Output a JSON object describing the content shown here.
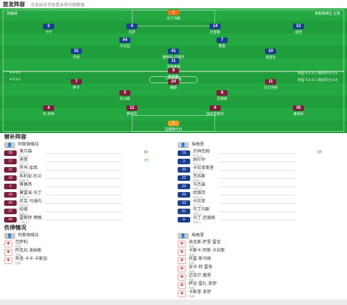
{
  "header": {
    "title": "首发阵容",
    "subtitle": "点击球员可查看本场详细数据",
    "left_team": "阿森纳",
    "right_team": "阿斯顿维拉 主场"
  },
  "pitch": {
    "home_formation": "4-2-3-1",
    "away_formation": "4-2-3-1",
    "center_text": "7球员赛场",
    "home_stats": "阵型 4-2-3-1 场均评分 6.9",
    "away_stats": "阵型 4-2-3-1 场均评分 6.8",
    "home_players": [
      {
        "num": "1",
        "name": "拉姆斯代尔",
        "rating": "6.9",
        "row": "gk"
      },
      {
        "num": "4",
        "name": "本·怀特",
        "rating": "7.2",
        "row": "def"
      },
      {
        "num": "12",
        "name": "萨利巴",
        "rating": "7.4",
        "row": "def"
      },
      {
        "num": "6",
        "name": "加布里埃尔",
        "rating": "7.1",
        "row": "def"
      },
      {
        "num": "35",
        "name": "津琴科",
        "rating": "6.8",
        "row": "def"
      },
      {
        "num": "5",
        "name": "托马斯",
        "rating": "7.0",
        "row": "dm"
      },
      {
        "num": "8",
        "name": "厄德高",
        "rating": "7.6",
        "row": "dm"
      },
      {
        "num": "7",
        "name": "萨卡",
        "rating": "7.8",
        "row": "am"
      },
      {
        "num": "24",
        "name": "赖斯",
        "rating": "7.3",
        "row": "am"
      },
      {
        "num": "11",
        "name": "马丁内利",
        "rating": "7.0",
        "row": "am"
      },
      {
        "num": "9",
        "name": "热苏斯",
        "rating": "6.7",
        "row": "fw"
      }
    ],
    "away_players": [
      {
        "num": "1",
        "name": "马丁内斯",
        "rating": "7.1",
        "row": "gk"
      },
      {
        "num": "2",
        "name": "卡什",
        "rating": "6.6",
        "row": "def"
      },
      {
        "num": "4",
        "name": "孔萨",
        "rating": "6.9",
        "row": "def"
      },
      {
        "num": "14",
        "name": "托雷斯",
        "rating": "6.8",
        "row": "def"
      },
      {
        "num": "12",
        "name": "迪涅",
        "rating": "6.7",
        "row": "def"
      },
      {
        "num": "44",
        "name": "卡马拉",
        "rating": "6.9",
        "row": "dm"
      },
      {
        "num": "7",
        "name": "麦金",
        "rating": "7.2",
        "row": "dm"
      },
      {
        "num": "31",
        "name": "贝利",
        "rating": "6.8",
        "row": "am"
      },
      {
        "num": "41",
        "name": "雅各布·拉姆齐",
        "rating": "6.6",
        "row": "am"
      },
      {
        "num": "10",
        "name": "迪亚比",
        "rating": "7.0",
        "row": "am"
      },
      {
        "num": "11",
        "name": "沃特金斯",
        "rating": "7.4",
        "row": "fw"
      }
    ]
  },
  "bench": {
    "title": "替补阵容",
    "home_coach": "阿斯顿维拉",
    "away_coach": "埃梅里",
    "home": [
      {
        "num": "26",
        "name": "奥尔森",
        "sub": "后卫 26",
        "event": "80'"
      },
      {
        "num": "17",
        "name": "迪恩",
        "sub": "后卫 17",
        "event": "72'"
      },
      {
        "num": "21",
        "name": "乔丹·库西",
        "sub": "前锋 21",
        "event": ""
      },
      {
        "num": "18",
        "name": "朱利安·杜兰",
        "sub": "前锋 18",
        "event": ""
      },
      {
        "num": "3",
        "name": "蒂莫西",
        "sub": "后卫 3",
        "event": ""
      },
      {
        "num": "19",
        "name": "莫雷诺·马丁",
        "sub": "中场 19",
        "event": ""
      },
      {
        "num": "20",
        "name": "尼克·马洛内",
        "sub": "中场 20",
        "event": ""
      },
      {
        "num": "27",
        "name": "哈维",
        "sub": "前锋 27",
        "event": ""
      },
      {
        "num": "64",
        "name": "雷斯特·博格",
        "sub": "门将 64",
        "event": ""
      }
    ],
    "away": [
      {
        "num": "19",
        "name": "贝林厄姆",
        "sub": "中场 19",
        "event": "58'"
      },
      {
        "num": "3",
        "name": "纳尔孙",
        "sub": "后卫 3",
        "event": ""
      },
      {
        "num": "20",
        "name": "卡拉菲奥里",
        "sub": "后卫 20",
        "event": ""
      },
      {
        "num": "22",
        "name": "杰苏斯",
        "sub": "前锋 22",
        "event": ""
      },
      {
        "num": "23",
        "name": "马杰森",
        "sub": "中场 23",
        "event": ""
      },
      {
        "num": "29",
        "name": "哈维茨",
        "sub": "中场 29",
        "event": ""
      },
      {
        "num": "33",
        "name": "卡拉菲",
        "sub": "后卫 33",
        "event": ""
      },
      {
        "num": "31",
        "name": "马丁内斯",
        "sub": "中场 31",
        "event": ""
      },
      {
        "num": "9",
        "name": "马丁·厄德高",
        "sub": "中场 9",
        "event": ""
      }
    ]
  },
  "injuries": {
    "title": "伤停情况",
    "home_coach": "阿斯顿维拉",
    "away_coach": "埃梅里",
    "home": [
      {
        "name": "巴萨利",
        "sub": "伤病"
      },
      {
        "name": "阿克拉·迪纳斯",
        "sub": "伤病"
      },
      {
        "name": "布里·卡卡·卡斯加",
        "sub": "伤病"
      }
    ],
    "away": [
      {
        "name": "迪克斯·萨里·雷克",
        "sub": "伤病"
      },
      {
        "name": "卡斯卡·阿斯·卡拉斯",
        "sub": "伤病"
      },
      {
        "name": "托雷·斯马顿",
        "sub": "伤病"
      },
      {
        "name": "安卡·特·雷奇",
        "sub": "伤病"
      },
      {
        "name": "迈克尔·基恩",
        "sub": "伤病"
      },
      {
        "name": "萨达·雷扎·亚伊",
        "sub": "伤病"
      },
      {
        "name": "卡斯里·亚伊",
        "sub": "伤病"
      }
    ]
  },
  "colors": {
    "home": "#7b1f3a",
    "away": "#1b3f8f",
    "pitch": "#1f9e3b"
  }
}
